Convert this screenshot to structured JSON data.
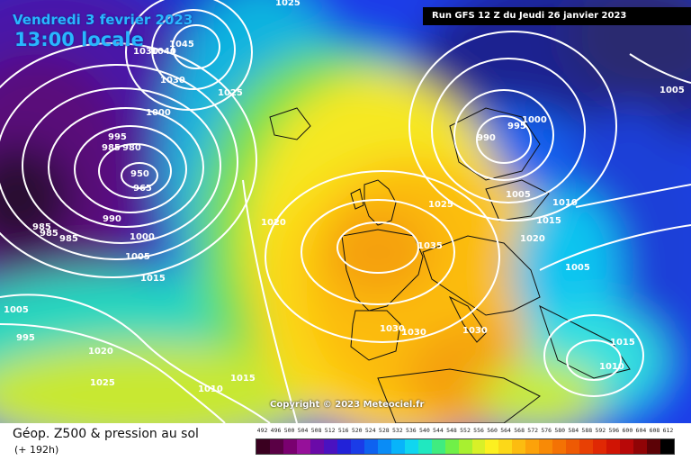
{
  "header": {
    "date": "Vendredi 3 fevrier 2023",
    "time": "13:00 locale",
    "run": "Run GFS 12 Z du Jeudi 26 janvier 2023"
  },
  "copyright": "Copyright © 2023 Meteociel.fr",
  "footer": {
    "title": "Géop. Z500 & pression au sol",
    "subtitle": "(+ 192h)"
  },
  "isobar_labels": [
    "1025",
    "1040",
    "1045",
    "1030",
    "1030",
    "1025",
    "1000",
    "995",
    "985",
    "980",
    "950",
    "965",
    "990",
    "1000",
    "1005",
    "1015",
    "985",
    "985",
    "985",
    "1005",
    "995",
    "1020",
    "1025",
    "1010",
    "1015",
    "1020",
    "1035",
    "1025",
    "1030",
    "1030",
    "1030",
    "1005",
    "995",
    "1000",
    "990",
    "1005",
    "1010",
    "1015",
    "1020",
    "1005",
    "1015",
    "1010"
  ],
  "scale": {
    "labels": [
      "492",
      "496",
      "500",
      "504",
      "508",
      "512",
      "516",
      "520",
      "524",
      "528",
      "532",
      "536",
      "540",
      "544",
      "548",
      "552",
      "556",
      "560",
      "564",
      "568",
      "572",
      "576",
      "580",
      "584",
      "588",
      "592",
      "596",
      "600",
      "604",
      "608",
      "612"
    ],
    "colors": [
      "#3a0020",
      "#5a0045",
      "#7a0070",
      "#96109a",
      "#6a0aa8",
      "#4a12c0",
      "#2222d8",
      "#1a3ce8",
      "#0e62f0",
      "#0a8cf6",
      "#08b4fa",
      "#10d6f0",
      "#20e8c0",
      "#40ec80",
      "#70f048",
      "#a8f030",
      "#d8f028",
      "#fcf020",
      "#fcd818",
      "#fcbc10",
      "#fca20a",
      "#f88a06",
      "#f47204",
      "#ee5a04",
      "#e84004",
      "#e02804",
      "#d01404",
      "#b80808",
      "#900406",
      "#5c0206",
      "#000000"
    ]
  },
  "colors": {
    "ocean_low": "#3a0a6e",
    "ridge": "#f7c020",
    "isobar": "#ffffff"
  }
}
